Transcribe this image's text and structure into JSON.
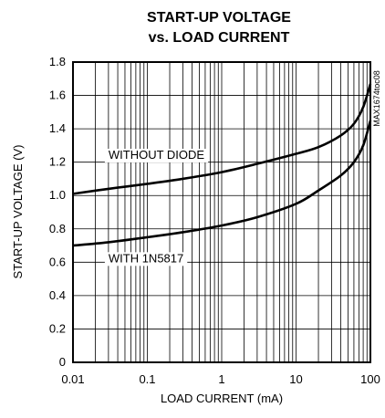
{
  "chart_data": {
    "type": "line",
    "title_lines": [
      "START-UP VOLTAGE",
      "vs. LOAD CURRENT"
    ],
    "xlabel": "LOAD CURRENT (mA)",
    "ylabel": "START-UP VOLTAGE (V)",
    "x_scale": "log",
    "xlim": [
      0.01,
      100
    ],
    "ylim": [
      0,
      1.8
    ],
    "x_ticks": [
      0.01,
      0.1,
      1,
      10,
      100
    ],
    "x_tick_labels": [
      "0.01",
      "0.1",
      "1",
      "10",
      "100"
    ],
    "y_ticks": [
      0,
      0.2,
      0.4,
      0.6,
      0.8,
      1.0,
      1.2,
      1.4,
      1.6,
      1.8
    ],
    "y_tick_labels": [
      "0",
      "0.2",
      "0.4",
      "0.6",
      "0.8",
      "1.0",
      "1.2",
      "1.4",
      "1.6",
      "1.8"
    ],
    "grid": true,
    "series": [
      {
        "name": "WITHOUT DIODE",
        "x": [
          0.01,
          0.03,
          0.1,
          0.3,
          1,
          3,
          10,
          20,
          40,
          60,
          80,
          100
        ],
        "y": [
          1.01,
          1.04,
          1.07,
          1.1,
          1.14,
          1.19,
          1.25,
          1.29,
          1.36,
          1.43,
          1.53,
          1.67
        ]
      },
      {
        "name": "WITH 1N5817",
        "x": [
          0.01,
          0.03,
          0.1,
          0.3,
          1,
          3,
          10,
          20,
          40,
          60,
          80,
          100
        ],
        "y": [
          0.7,
          0.72,
          0.75,
          0.78,
          0.82,
          0.87,
          0.95,
          1.03,
          1.12,
          1.2,
          1.3,
          1.45
        ]
      }
    ],
    "annotations": [
      {
        "text": "WITHOUT DIODE",
        "series": 0
      },
      {
        "text": "WITH 1N5817",
        "series": 1
      }
    ],
    "figure_code": "MAX1674toc08"
  }
}
